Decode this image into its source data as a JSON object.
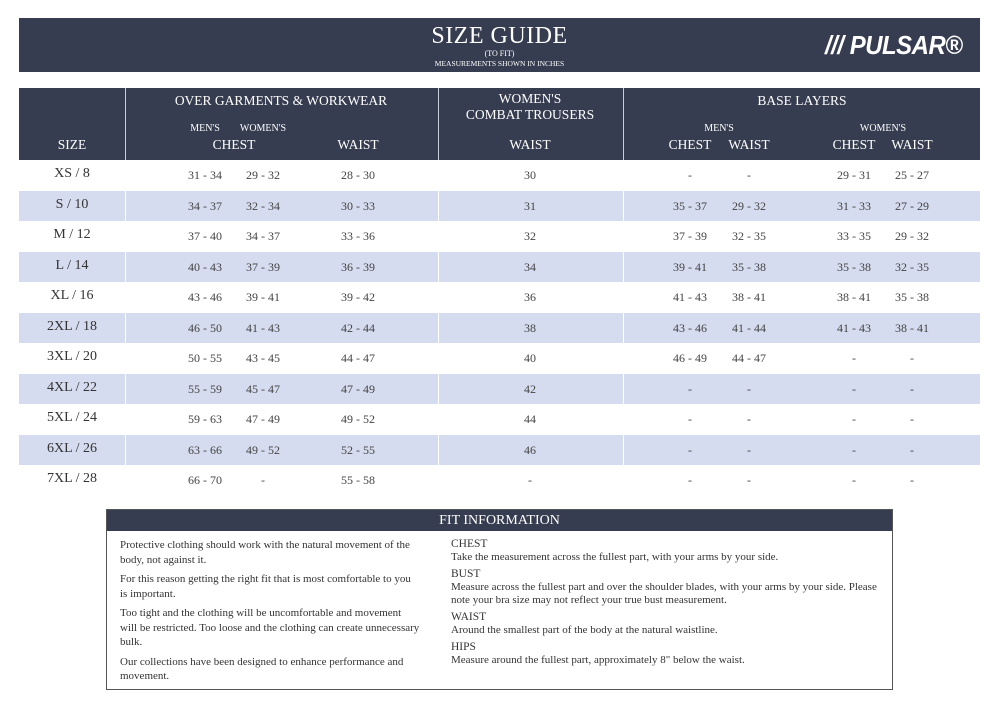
{
  "header": {
    "title": "SIZE GUIDE",
    "subtitle": "(TO FIT)",
    "units": "MEASUREMENTS SHOWN IN INCHES",
    "logo": "/// PULSAR®",
    "color": "#363d50"
  },
  "table": {
    "size_label": "SIZE",
    "groups": {
      "over": {
        "label": "OVER GARMENTS & WORKWEAR",
        "mens": "MEN'S",
        "womens": "WOMEN'S",
        "chest": "CHEST",
        "waist": "WAIST"
      },
      "combat": {
        "label1": "WOMEN'S",
        "label2": "COMBAT TROUSERS",
        "waist": "WAIST"
      },
      "base": {
        "label": "BASE LAYERS",
        "mens": "MEN'S",
        "womens": "WOMEN'S",
        "m_chest": "CHEST",
        "m_waist": "WAIST",
        "w_chest": "CHEST",
        "w_waist": "WAIST"
      }
    },
    "rows": [
      [
        "XS / 8",
        "31 - 34",
        "29 - 32",
        "28 - 30",
        "30",
        "-",
        "-",
        "29 - 31",
        "25 - 27"
      ],
      [
        "S / 10",
        "34 - 37",
        "32 - 34",
        "30 - 33",
        "31",
        "35 - 37",
        "29 - 32",
        "31 - 33",
        "27 - 29"
      ],
      [
        "M / 12",
        "37 - 40",
        "34 - 37",
        "33 - 36",
        "32",
        "37 - 39",
        "32 - 35",
        "33 - 35",
        "29 - 32"
      ],
      [
        "L / 14",
        "40 - 43",
        "37 - 39",
        "36 - 39",
        "34",
        "39 - 41",
        "35 - 38",
        "35 - 38",
        "32 - 35"
      ],
      [
        "XL / 16",
        "43 - 46",
        "39 - 41",
        "39 - 42",
        "36",
        "41 - 43",
        "38 - 41",
        "38 - 41",
        "35 - 38"
      ],
      [
        "2XL / 18",
        "46 - 50",
        "41 - 43",
        "42 - 44",
        "38",
        "43 - 46",
        "41 - 44",
        "41 - 43",
        "38 - 41"
      ],
      [
        "3XL / 20",
        "50 - 55",
        "43 - 45",
        "44 - 47",
        "40",
        "46 - 49",
        "44 - 47",
        "-",
        "-"
      ],
      [
        "4XL / 22",
        "55 - 59",
        "45 - 47",
        "47 - 49",
        "42",
        "-",
        "-",
        "-",
        "-"
      ],
      [
        "5XL / 24",
        "59 - 63",
        "47 - 49",
        "49 - 52",
        "44",
        "-",
        "-",
        "-",
        "-"
      ],
      [
        "6XL / 26",
        "63 - 66",
        "49 - 52",
        "52 - 55",
        "46",
        "-",
        "-",
        "-",
        "-"
      ],
      [
        "7XL / 28",
        "66 - 70",
        "-",
        "55 - 58",
        "-",
        "-",
        "-",
        "-",
        "-"
      ]
    ],
    "alt_row_color": "#d6dcef"
  },
  "fit": {
    "title": "FIT INFORMATION",
    "left": [
      "Protective clothing should work with the natural movement of the body, not against it.",
      "For this reason getting the right fit that is most comfortable to you is important.",
      "Too tight and the clothing will be uncomfortable and movement will be restricted. Too loose and the clothing can create unnecessary bulk.",
      "Our collections have been designed to enhance performance and movement."
    ],
    "right": [
      {
        "term": "CHEST",
        "desc": "Take the measurement across the fullest part, with your arms by your side."
      },
      {
        "term": "BUST",
        "desc": "Measure across the fullest part and over the shoulder blades, with your arms by your side. Please note your bra size may not reflect your true bust measurement."
      },
      {
        "term": "WAIST",
        "desc": "Around the smallest part of the body at the natural waistline."
      },
      {
        "term": "HIPS",
        "desc": "Measure around the fullest part, approximately 8\" below the waist."
      }
    ]
  }
}
